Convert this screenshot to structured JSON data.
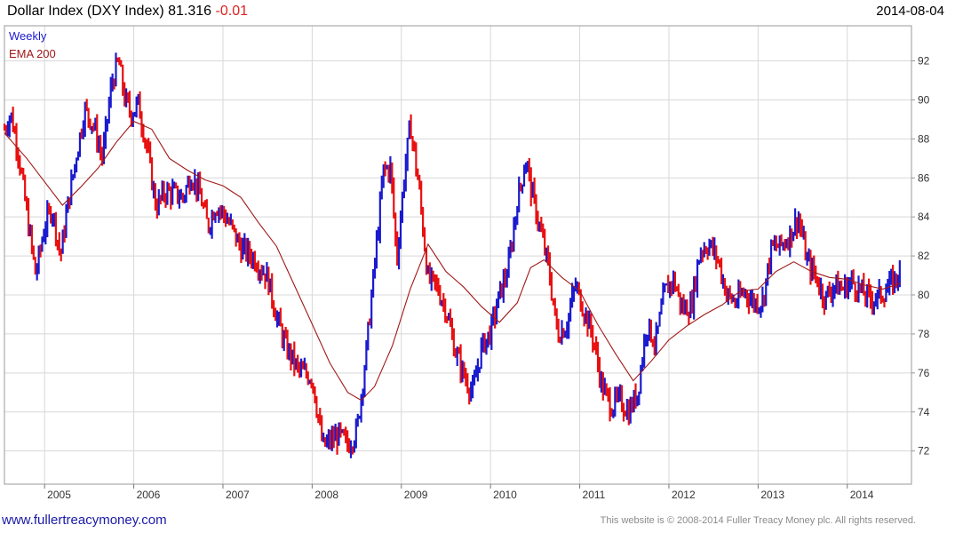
{
  "header": {
    "title": "Dollar Index (DXY Index) 81.316",
    "change": "-0.01",
    "date": "2014-08-04"
  },
  "footer": {
    "url": "www.fullertreacymoney.com",
    "copyright": "This website is © 2008-2014 Fuller Treacy Money plc. All rights reserved."
  },
  "colors": {
    "up": "#1a1ad0",
    "down": "#e81010",
    "ema": "#a01818",
    "grid": "#d8d8d8",
    "change": "#e02020"
  },
  "chart_data": {
    "type": "line",
    "title": "Dollar Index (DXY Index) 81.316 -0.01",
    "frequency": "Weekly",
    "x_ticks": [
      "2005",
      "2006",
      "2007",
      "2008",
      "2009",
      "2010",
      "2011",
      "2012",
      "2013",
      "2014"
    ],
    "x_range": [
      2004.55,
      2014.62
    ],
    "y_ticks": [
      72,
      74,
      76,
      78,
      80,
      82,
      84,
      86,
      88,
      90,
      92
    ],
    "ylim": [
      70.3,
      93.8
    ],
    "y_axis_side": "right",
    "grid": true,
    "legend": "top-left",
    "series": [
      {
        "name": "Weekly",
        "style": "bars (blue up, red down)",
        "x": [
          2004.55,
          2004.62,
          2004.7,
          2004.8,
          2004.9,
          2005.0,
          2005.08,
          2005.18,
          2005.25,
          2005.35,
          2005.45,
          2005.55,
          2005.65,
          2005.75,
          2005.83,
          2005.9,
          2005.97,
          2006.05,
          2006.15,
          2006.25,
          2006.35,
          2006.45,
          2006.55,
          2006.65,
          2006.75,
          2006.83,
          2006.92,
          2007.0,
          2007.08,
          2007.2,
          2007.35,
          2007.5,
          2007.6,
          2007.7,
          2007.85,
          2008.0,
          2008.12,
          2008.2,
          2008.3,
          2008.4,
          2008.5,
          2008.6,
          2008.7,
          2008.8,
          2008.88,
          2008.95,
          2009.03,
          2009.1,
          2009.2,
          2009.3,
          2009.4,
          2009.5,
          2009.6,
          2009.7,
          2009.8,
          2009.9,
          2010.0,
          2010.1,
          2010.2,
          2010.3,
          2010.4,
          2010.45,
          2010.55,
          2010.65,
          2010.75,
          2010.85,
          2010.95,
          2011.05,
          2011.15,
          2011.25,
          2011.35,
          2011.45,
          2011.55,
          2011.65,
          2011.75,
          2011.85,
          2011.95,
          2012.05,
          2012.15,
          2012.25,
          2012.35,
          2012.45,
          2012.55,
          2012.65,
          2012.75,
          2012.85,
          2012.95,
          2013.05,
          2013.15,
          2013.25,
          2013.35,
          2013.45,
          2013.55,
          2013.65,
          2013.75,
          2013.85,
          2013.95,
          2014.05,
          2014.15,
          2014.25,
          2014.35,
          2014.45,
          2014.55,
          2014.6
        ],
        "values": [
          88.5,
          89.3,
          87.5,
          84.2,
          81.0,
          83.5,
          84.5,
          82.0,
          84.3,
          87.0,
          89.5,
          88.7,
          87.0,
          90.8,
          92.0,
          90.0,
          89.3,
          89.8,
          87.5,
          84.5,
          85.3,
          85.2,
          85.0,
          86.2,
          85.0,
          83.5,
          84.6,
          84.2,
          83.6,
          82.4,
          81.9,
          80.9,
          78.9,
          77.4,
          76.1,
          75.8,
          72.2,
          72.5,
          72.8,
          72.3,
          73.0,
          76.8,
          81.5,
          86.4,
          86.5,
          81.8,
          86.0,
          88.8,
          85.4,
          80.8,
          80.4,
          79.3,
          77.2,
          75.9,
          75.0,
          77.3,
          78.1,
          80.0,
          81.4,
          84.8,
          87.0,
          85.5,
          83.5,
          81.4,
          78.0,
          78.4,
          80.5,
          79.2,
          77.8,
          75.3,
          74.3,
          74.6,
          74.0,
          75.0,
          78.5,
          77.5,
          80.1,
          80.8,
          79.3,
          79.4,
          82.3,
          82.6,
          81.8,
          80.0,
          79.6,
          80.2,
          79.6,
          79.7,
          82.4,
          82.5,
          83.0,
          84.0,
          81.7,
          80.9,
          79.8,
          80.5,
          80.3,
          80.7,
          80.2,
          79.8,
          79.9,
          80.3,
          80.9,
          81.3
        ]
      },
      {
        "name": "EMA 200",
        "style": "line",
        "x": [
          2004.55,
          2004.8,
          2005.0,
          2005.2,
          2005.4,
          2005.6,
          2005.8,
          2006.0,
          2006.2,
          2006.4,
          2006.6,
          2006.8,
          2007.0,
          2007.2,
          2007.4,
          2007.6,
          2007.8,
          2008.0,
          2008.2,
          2008.4,
          2008.55,
          2008.7,
          2008.9,
          2009.1,
          2009.3,
          2009.5,
          2009.7,
          2009.9,
          2010.1,
          2010.3,
          2010.45,
          2010.6,
          2010.8,
          2011.0,
          2011.2,
          2011.4,
          2011.6,
          2011.8,
          2012.0,
          2012.2,
          2012.4,
          2012.6,
          2012.8,
          2013.0,
          2013.2,
          2013.4,
          2013.6,
          2013.8,
          2014.0,
          2014.2,
          2014.4,
          2014.6
        ],
        "values": [
          88.3,
          87.0,
          85.8,
          84.6,
          85.5,
          86.5,
          87.8,
          88.9,
          88.5,
          87.0,
          86.4,
          85.9,
          85.6,
          85.0,
          83.7,
          82.5,
          80.5,
          78.5,
          76.5,
          75.0,
          74.6,
          75.3,
          77.4,
          80.3,
          82.6,
          81.2,
          80.4,
          79.4,
          78.6,
          79.6,
          81.4,
          81.8,
          80.9,
          80.2,
          78.5,
          77.0,
          75.6,
          76.6,
          77.7,
          78.4,
          79.0,
          79.5,
          80.2,
          80.3,
          81.2,
          81.7,
          81.2,
          80.9,
          80.8,
          80.5,
          80.3,
          80.6
        ]
      }
    ]
  }
}
